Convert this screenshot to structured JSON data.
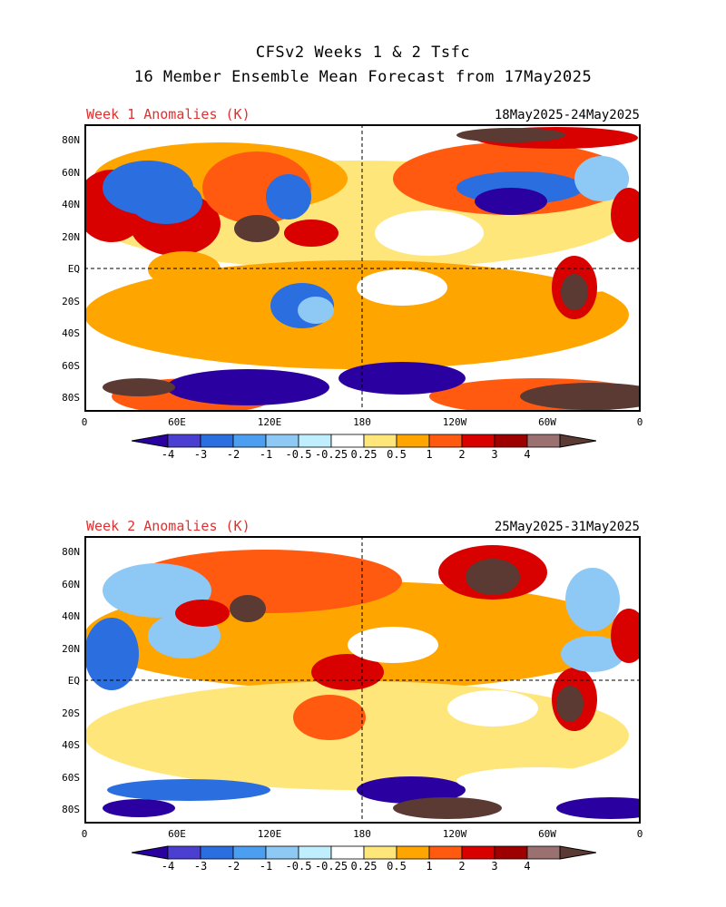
{
  "header": {
    "line1": "CFSv2 Weeks 1 & 2 Tsfc",
    "line2": "16 Member Ensemble Mean Forecast from 17May2025"
  },
  "panels": [
    {
      "title": "Week 1 Anomalies (K)",
      "dates": "18May2025-24May2025"
    },
    {
      "title": "Week 2 Anomalies (K)",
      "dates": "25May2025-31May2025"
    }
  ],
  "axes": {
    "lat_labels": [
      "80N",
      "60N",
      "40N",
      "20N",
      "EQ",
      "20S",
      "40S",
      "60S",
      "80S"
    ],
    "lon_labels": [
      "0",
      "60E",
      "120E",
      "180",
      "120W",
      "60W",
      "0"
    ]
  },
  "colorbar": {
    "labels": [
      "-4",
      "-3",
      "-2",
      "-1",
      "-0.5",
      "-0.25",
      "0.25",
      "0.5",
      "1",
      "2",
      "3",
      "4"
    ],
    "colors": [
      "#2a00a0",
      "#4a3fd0",
      "#2a6ee0",
      "#4c9ff0",
      "#8ec8f5",
      "#bfeeff",
      "#ffffff",
      "#ffe67a",
      "#ffa500",
      "#ff5a10",
      "#d90000",
      "#9e0000",
      "#9a7070",
      "#5a3a32"
    ]
  },
  "map_colors": {
    "deep_cold": "#2a00a0",
    "cold": "#2a6ee0",
    "cool": "#8ec8f5",
    "neutral": "#ffffff",
    "mild": "#ffe67a",
    "warm": "#ffa500",
    "hot": "#ff5a10",
    "very_hot": "#d90000",
    "extreme": "#5a3a32"
  }
}
